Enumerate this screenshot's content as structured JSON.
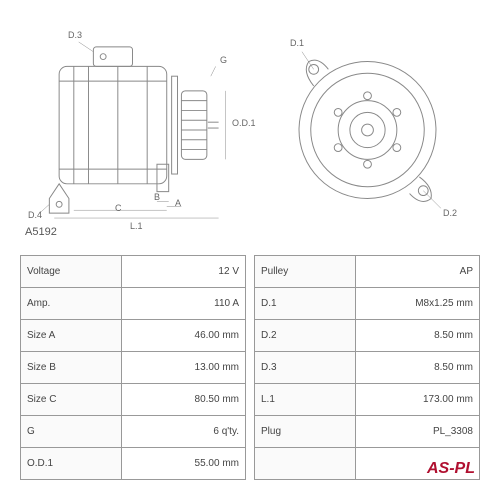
{
  "part_number": "A5192",
  "logo": "AS-PL",
  "colors": {
    "line": "#888888",
    "text": "#555555",
    "border": "#999999",
    "logo": "#b01030"
  },
  "drawing_labels": {
    "side": {
      "d3": "D.3",
      "d4": "D.4",
      "g": "G",
      "od1": "O.D.1",
      "b": "B",
      "a": "A",
      "c": "C",
      "l1": "L.1"
    },
    "front": {
      "d1": "D.1",
      "d2": "D.2"
    }
  },
  "specs_left": [
    {
      "label": "Voltage",
      "value": "12 V"
    },
    {
      "label": "Amp.",
      "value": "110 A"
    },
    {
      "label": "Size A",
      "value": "46.00 mm"
    },
    {
      "label": "Size B",
      "value": "13.00 mm"
    },
    {
      "label": "Size C",
      "value": "80.50 mm"
    },
    {
      "label": "G",
      "value": "6 q'ty."
    },
    {
      "label": "O.D.1",
      "value": "55.00 mm"
    }
  ],
  "specs_right": [
    {
      "label": "Pulley",
      "value": "AP"
    },
    {
      "label": "D.1",
      "value": "M8x1.25 mm"
    },
    {
      "label": "D.2",
      "value": "8.50 mm"
    },
    {
      "label": "D.3",
      "value": "8.50 mm"
    },
    {
      "label": "L.1",
      "value": "173.00 mm"
    },
    {
      "label": "Plug",
      "value": "PL_3308"
    },
    {
      "label": "",
      "value": ""
    }
  ]
}
